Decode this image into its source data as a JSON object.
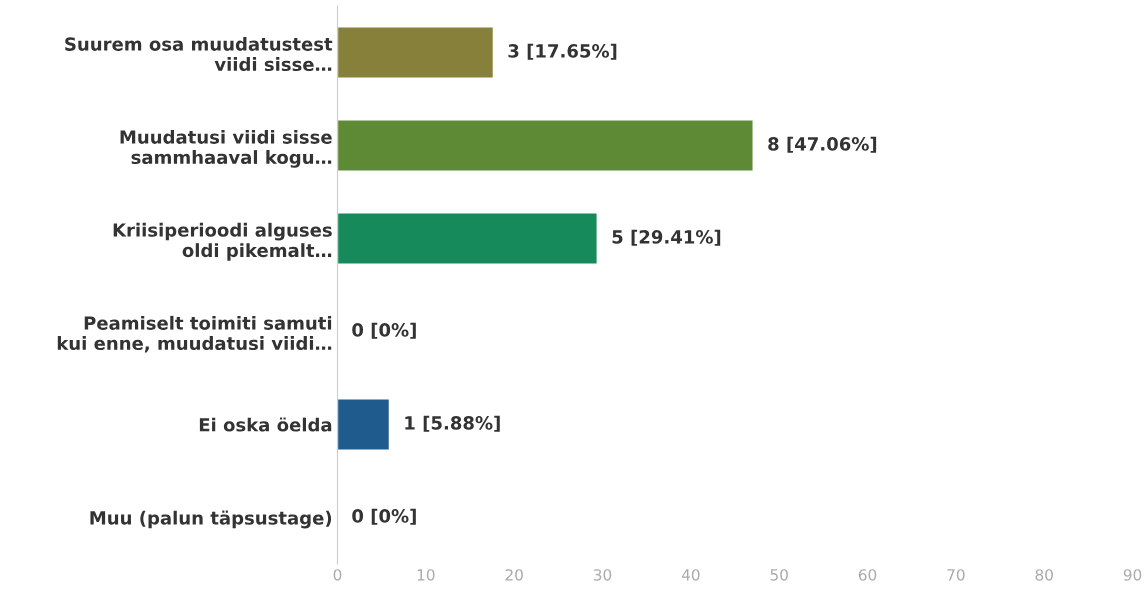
{
  "chart_data": {
    "type": "bar",
    "orientation": "horizontal",
    "categories": [
      "Suurem osa muudatustest\nviidi sisse…",
      "Muudatusi viidi sisse\nsammhaaval kogu…",
      "Kriisiperioodi alguses\noldi pikemalt…",
      "Peamiselt toimiti samuti\nkui enne, muudatusi viidi…",
      "Ei oska öelda",
      "Muu (palun täpsustage)"
    ],
    "values": [
      17.65,
      47.06,
      29.41,
      0,
      5.88,
      0
    ],
    "value_labels": [
      "3 [17.65%]",
      "8 [47.06%]",
      "5 [29.41%]",
      "0 [0%]",
      "1 [5.88%]",
      "0 [0%]"
    ],
    "colors": [
      "#86803a",
      "#5e8a35",
      "#168a5a",
      null,
      "#1f5b8c",
      null
    ],
    "xlim": [
      0,
      90
    ],
    "xticks": [
      0,
      10,
      20,
      30,
      40,
      50,
      60,
      70,
      80,
      90
    ],
    "grid": false
  }
}
